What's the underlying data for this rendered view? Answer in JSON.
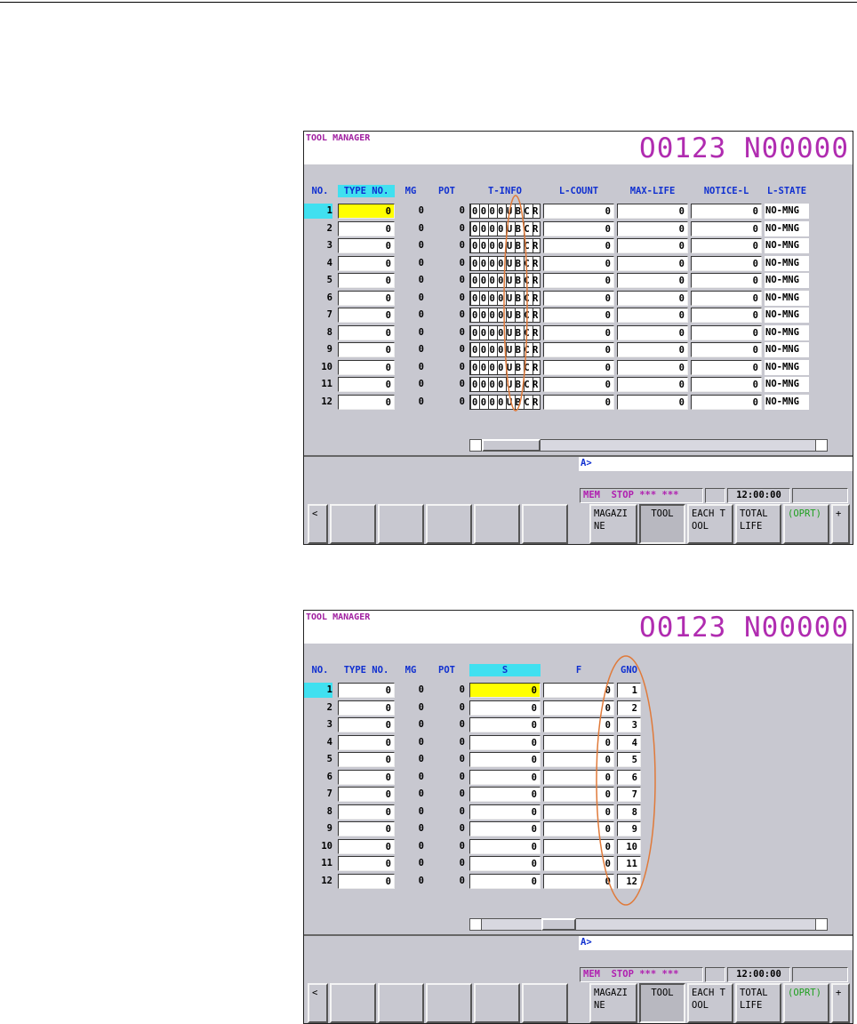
{
  "screens": [
    {
      "title": "TOOL MANAGER",
      "program": "O0123 N00000",
      "columns": [
        "NO.",
        "TYPE NO.",
        "MG",
        "POT",
        "T-INFO",
        "L-COUNT",
        "MAX-LIFE",
        "NOTICE-L",
        "L-STATE"
      ],
      "rows": [
        [
          1,
          0,
          0,
          0,
          "0000UBCR",
          0,
          0,
          0,
          "NO-MNG"
        ],
        [
          2,
          0,
          0,
          0,
          "0000UBCR",
          0,
          0,
          0,
          "NO-MNG"
        ],
        [
          3,
          0,
          0,
          0,
          "0000UBCR",
          0,
          0,
          0,
          "NO-MNG"
        ],
        [
          4,
          0,
          0,
          0,
          "0000UBCR",
          0,
          0,
          0,
          "NO-MNG"
        ],
        [
          5,
          0,
          0,
          0,
          "0000UBCR",
          0,
          0,
          0,
          "NO-MNG"
        ],
        [
          6,
          0,
          0,
          0,
          "0000UBCR",
          0,
          0,
          0,
          "NO-MNG"
        ],
        [
          7,
          0,
          0,
          0,
          "0000UBCR",
          0,
          0,
          0,
          "NO-MNG"
        ],
        [
          8,
          0,
          0,
          0,
          "0000UBCR",
          0,
          0,
          0,
          "NO-MNG"
        ],
        [
          9,
          0,
          0,
          0,
          "0000UBCR",
          0,
          0,
          0,
          "NO-MNG"
        ],
        [
          10,
          0,
          0,
          0,
          "0000UBCR",
          0,
          0,
          0,
          "NO-MNG"
        ],
        [
          11,
          0,
          0,
          0,
          "0000UBCR",
          0,
          0,
          0,
          "NO-MNG"
        ],
        [
          12,
          0,
          0,
          0,
          "0000UBCR",
          0,
          0,
          0,
          "NO-MNG"
        ]
      ],
      "input_prompt": "A>",
      "status": "MEM  STOP *** ***",
      "time": "12:00:00",
      "softkeys": [
        "<",
        "MAGAZI\nNE",
        "TOOL",
        "EACH T\nOOL",
        "TOTAL\nLIFE",
        "(OPRT)",
        "+"
      ]
    },
    {
      "title": "TOOL MANAGER",
      "program": "O0123 N00000",
      "columns": [
        "NO.",
        "TYPE NO.",
        "MG",
        "POT",
        "S",
        "F",
        "GNO"
      ],
      "rows": [
        [
          1,
          0,
          0,
          0,
          0,
          0,
          1
        ],
        [
          2,
          0,
          0,
          0,
          0,
          0,
          2
        ],
        [
          3,
          0,
          0,
          0,
          0,
          0,
          3
        ],
        [
          4,
          0,
          0,
          0,
          0,
          0,
          4
        ],
        [
          5,
          0,
          0,
          0,
          0,
          0,
          5
        ],
        [
          6,
          0,
          0,
          0,
          0,
          0,
          6
        ],
        [
          7,
          0,
          0,
          0,
          0,
          0,
          7
        ],
        [
          8,
          0,
          0,
          0,
          0,
          0,
          8
        ],
        [
          9,
          0,
          0,
          0,
          0,
          0,
          9
        ],
        [
          10,
          0,
          0,
          0,
          0,
          0,
          10
        ],
        [
          11,
          0,
          0,
          0,
          0,
          0,
          11
        ],
        [
          12,
          0,
          0,
          0,
          0,
          0,
          12
        ]
      ],
      "input_prompt": "A>",
      "status": "MEM  STOP *** ***",
      "time": "12:00:00",
      "softkeys": [
        "<",
        "MAGAZI\nNE",
        "TOOL",
        "EACH T\nOOL",
        "TOTAL\nLIFE",
        "(OPRT)",
        "+"
      ]
    }
  ]
}
